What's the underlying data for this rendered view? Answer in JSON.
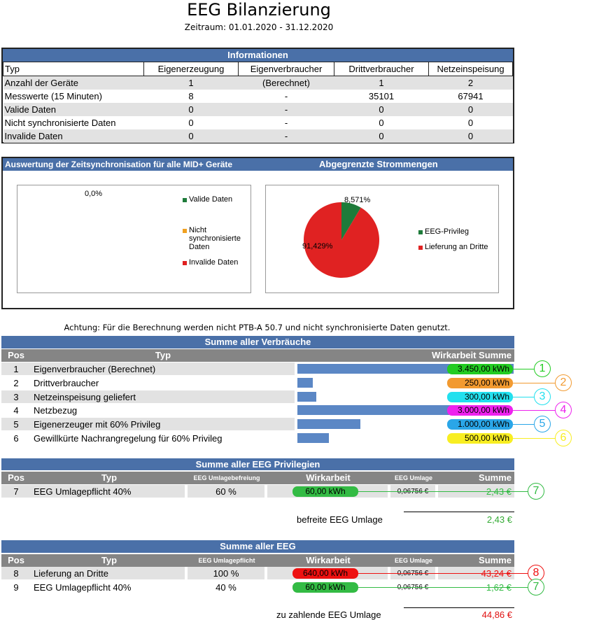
{
  "header": {
    "title": "EEG Bilanzierung",
    "period": "Zeitraum: 01.01.2020 - 31.12.2020"
  },
  "info": {
    "title": "Informationen",
    "columns": [
      "Typ",
      "Eigenerzeugung",
      "Eigenverbraucher",
      "Drittverbraucher",
      "Netzeinspeisung"
    ],
    "rows": [
      [
        "Anzahl der Geräte",
        "1",
        "(Berechnet)",
        "1",
        "2"
      ],
      [
        "Messwerte (15 Minuten)",
        "8",
        "-",
        "35101",
        "67941"
      ],
      [
        "Valide Daten",
        "0",
        "-",
        "0",
        "0"
      ],
      [
        "Nicht synchronisierte Daten",
        "0",
        "-",
        "0",
        "0"
      ],
      [
        "Invalide Daten",
        "0",
        "-",
        "0",
        "0"
      ]
    ]
  },
  "charts": {
    "left_title": "Auswertung der Zeitsynchronisation für alle MID+ Geräte",
    "right_title": "Abgegrenzte Strommengen",
    "left_label": "0,0%",
    "left_legend": [
      {
        "label": "Valide Daten",
        "color": "#1e7b3a"
      },
      {
        "label": "Nicht synchronisierte Daten",
        "color": "#f0a020"
      },
      {
        "label": "Invalide Daten",
        "color": "#e02020"
      }
    ]
  },
  "chart_data": {
    "type": "pie",
    "title": "Abgegrenzte Strommengen",
    "labels": [
      "EEG-Privileg",
      "Lieferung an Dritte"
    ],
    "values": [
      8.571,
      91.429
    ],
    "value_labels": [
      "8,571%",
      "91,429%"
    ],
    "colors": [
      "#1e7b3a",
      "#e02222"
    ]
  },
  "note": "Achtung: Für die Berechnung werden nicht PTB-A 50.7 und nicht synchronisierte Daten genutzt.",
  "consumption": {
    "title": "Summe aller Verbräuche",
    "col_pos": "Pos",
    "col_typ": "Typ",
    "col_sum": "Wirkarbeit Summe",
    "max": 3450,
    "rows": [
      {
        "pos": "1",
        "typ": "Eigenverbraucher (Berechnet)",
        "value": 3450,
        "label": "3.450,00 kWh",
        "color": "#22cc22",
        "marker": "1"
      },
      {
        "pos": "2",
        "typ": "Drittverbraucher",
        "value": 250,
        "label": "250,00 kWh",
        "color": "#f29a30",
        "marker": "2"
      },
      {
        "pos": "3",
        "typ": "Netzeinspeisung geliefert",
        "value": 300,
        "label": "300,00 kWh",
        "color": "#22e0ee",
        "marker": "3"
      },
      {
        "pos": "4",
        "typ": "Netzbezug",
        "value": 3000,
        "label": "3.000,00 kWh",
        "color": "#ee22ee",
        "marker": "4"
      },
      {
        "pos": "5",
        "typ": "Eigenerzeuger mit 60% Privileg",
        "value": 1000,
        "label": "1.000,00 kWh",
        "color": "#2aa6e8",
        "marker": "5"
      },
      {
        "pos": "6",
        "typ": "Gewillkürte Nachrangregelung für 60% Privileg",
        "value": 500,
        "label": "500,00 kWh",
        "color": "#f8ee22",
        "marker": "6"
      }
    ]
  },
  "privileges": {
    "title": "Summe aller EEG Privilegien",
    "cols": [
      "Pos",
      "Typ",
      "EEG Umlagebefreiung",
      "Wirkarbeit",
      "EEG Umlage",
      "Summe"
    ],
    "rows": [
      {
        "pos": "7",
        "typ": "EEG Umlagepflicht 40%",
        "pct": "60 %",
        "work": "60,00 kWh",
        "rate": "0,06756 €",
        "sum": "2,43 €",
        "color": "#33bb44",
        "marker": "7"
      }
    ],
    "total_label": "befreite EEG Umlage",
    "total_value": "2,43 €"
  },
  "eeg": {
    "title": "Summe aller EEG",
    "cols": [
      "Pos",
      "Typ",
      "EEG Umlagepflicht",
      "Wirkarbeit",
      "EEG Umlage",
      "Summe"
    ],
    "rows": [
      {
        "pos": "8",
        "typ": "Lieferung an Dritte",
        "pct": "100 %",
        "work": "640,00 kWh",
        "rate": "0,06756 €",
        "sum": "43,24 €",
        "color": "#ee1111",
        "marker": "8"
      },
      {
        "pos": "9",
        "typ": "EEG Umlagepflicht 40%",
        "pct": "40 %",
        "work": "60,00 kWh",
        "rate": "0,06756 €",
        "sum": "1,62 €",
        "color": "#33bb44",
        "marker": "7"
      }
    ],
    "total_label": "zu zahlende EEG Umlage",
    "total_value": "44,86 €"
  }
}
